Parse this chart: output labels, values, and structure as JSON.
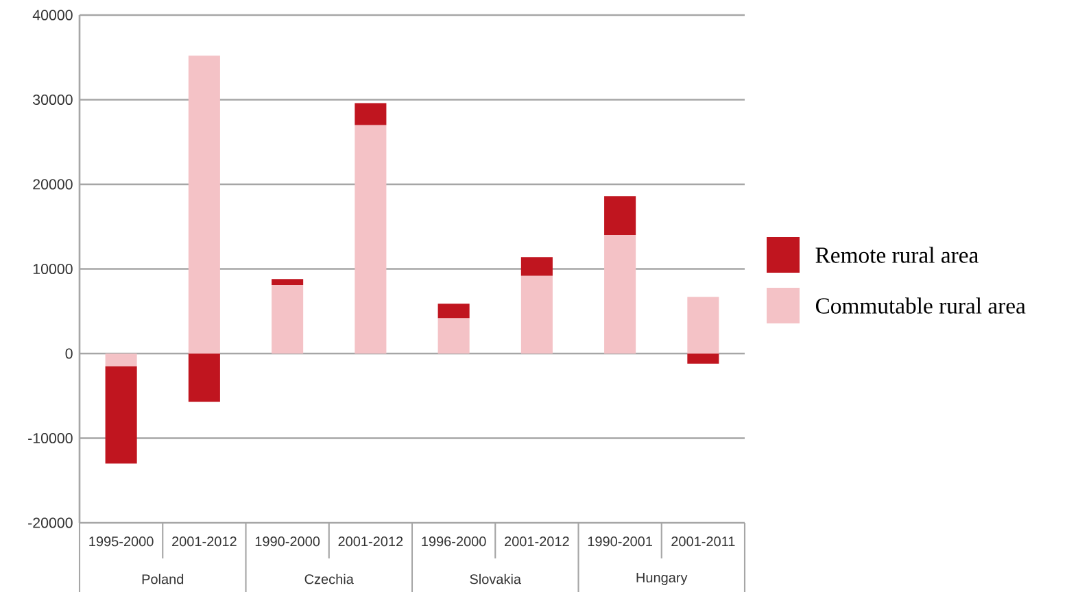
{
  "chart_data": {
    "type": "bar",
    "stacked": true,
    "categories": [
      "1995-2000",
      "2001-2012",
      "1990-2000",
      "2001-2012",
      "1996-2000",
      "2001-2012",
      "1990-2001",
      "2001-2011"
    ],
    "series": [
      {
        "name": "Commutable rural area",
        "color": "#f4c2c6",
        "values": [
          -1500,
          35200,
          8100,
          27000,
          4200,
          9200,
          14000,
          6700
        ]
      },
      {
        "name": "Remote rural area",
        "color": "#c0151f",
        "values": [
          -11500,
          -5700,
          700,
          2600,
          1700,
          2200,
          4600,
          -1200
        ]
      }
    ],
    "ylim": [
      -20000,
      40000
    ],
    "yticks": [
      -20000,
      -10000,
      0,
      10000,
      20000,
      30000,
      40000
    ],
    "grid": "y",
    "legend": "right",
    "annotations": [
      "Poland",
      "Czechia",
      "Slovakia",
      "Hungary"
    ]
  }
}
